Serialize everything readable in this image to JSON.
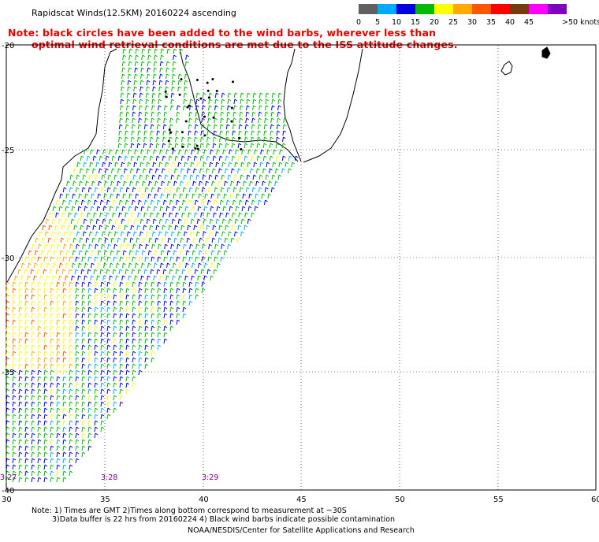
{
  "header": {
    "title": "Rapidscat Winds(12.5KM) 20160224 ascending",
    "note_line1": "Note: black circles have been added to the wind barbs, wherever less than",
    "note_line2": "optimal wind retrieval conditions are met due to the ISS attitude changes."
  },
  "legend": {
    "unit": ">50 knots",
    "items": [
      {
        "label": "0",
        "color": "#606060"
      },
      {
        "label": "5",
        "color": "#00aaff"
      },
      {
        "label": "10",
        "color": "#0000dd"
      },
      {
        "label": "15",
        "color": "#00bb00"
      },
      {
        "label": "20",
        "color": "#ffff00"
      },
      {
        "label": "25",
        "color": "#ffaa00"
      },
      {
        "label": "30",
        "color": "#ff5500"
      },
      {
        "label": "35",
        "color": "#ff0000"
      },
      {
        "label": "40",
        "color": "#7a3a10"
      },
      {
        "label": "45",
        "color": "#ff00ff"
      },
      {
        "label": "",
        "color": "#8000c0"
      }
    ]
  },
  "map": {
    "lat_labels": [
      "-20",
      "-25",
      "-30",
      "-35",
      "-40"
    ],
    "lon_labels": [
      "30",
      "35",
      "40",
      "45",
      "50",
      "55",
      "60"
    ],
    "times": [
      "3:27",
      "3:28",
      "3:29"
    ],
    "colors": {
      "land": "#000000",
      "grid": "#000000",
      "circle": "#000000"
    }
  },
  "footer": {
    "line1": "Note: 1) Times are GMT 2)Times along bottom correspond to measurement at ~30S",
    "line2": "3)Data buffer is 22 hrs from 20160224 4) Black wind barbs indicate possible contamination",
    "line3": "NOAA/NESDIS/Center for Satellite Applications and Research"
  }
}
